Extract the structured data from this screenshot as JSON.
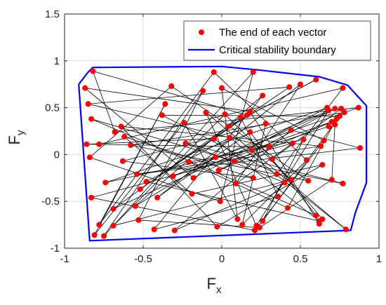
{
  "chart_data": {
    "type": "scatter",
    "xlabel": "F",
    "xlabel_sub": "x",
    "ylabel": "F",
    "ylabel_sub": "y",
    "xlim": [
      -1,
      1
    ],
    "ylim": [
      -1,
      1.5
    ],
    "xticks": [
      -1,
      -0.5,
      0,
      0.5,
      1
    ],
    "yticks": [
      -1,
      -0.5,
      0,
      0.5,
      1,
      1.5
    ],
    "xtick_labels": [
      "-1",
      "-0.5",
      "0",
      "0.5",
      "1"
    ],
    "ytick_labels": [
      "-1",
      "-0.5",
      "0",
      "0.5",
      "1",
      "1.5"
    ],
    "grid": true,
    "legend_position": "top-right",
    "legend": [
      {
        "label": "The end of each vector",
        "marker": "dot",
        "color": "#ff0000"
      },
      {
        "label": "Critical stability boundary",
        "marker": "line",
        "color": "#0000ff"
      }
    ],
    "boundary_color": "#0000ff",
    "point_color": "#ff0000",
    "arrow_color": "#000000",
    "boundary": [
      [
        -0.91,
        0.75
      ],
      [
        -0.85,
        0.88
      ],
      [
        -0.82,
        0.93
      ],
      [
        0.0,
        0.94
      ],
      [
        0.25,
        0.9
      ],
      [
        0.62,
        0.83
      ],
      [
        0.8,
        0.74
      ],
      [
        0.92,
        0.52
      ],
      [
        0.92,
        -0.3
      ],
      [
        0.85,
        -0.62
      ],
      [
        0.82,
        -0.81
      ],
      [
        -0.84,
        -0.92
      ],
      [
        -0.91,
        0.75
      ]
    ],
    "points": [
      [
        -0.87,
        0.71
      ],
      [
        -0.82,
        0.89
      ],
      [
        -0.85,
        0.54
      ],
      [
        -0.83,
        0.38
      ],
      [
        -0.86,
        0.11
      ],
      [
        -0.84,
        -0.03
      ],
      [
        -0.78,
        0.11
      ],
      [
        -0.74,
        -0.3
      ],
      [
        -0.83,
        -0.46
      ],
      [
        -0.78,
        -0.75
      ],
      [
        -0.81,
        -0.86
      ],
      [
        -0.75,
        -0.87
      ],
      [
        -0.69,
        -0.58
      ],
      [
        -0.69,
        -0.76
      ],
      [
        -0.68,
        0.24
      ],
      [
        -0.64,
        0.3
      ],
      [
        -0.62,
        0.19
      ],
      [
        -0.58,
        0.1
      ],
      [
        -0.63,
        -0.07
      ],
      [
        -0.54,
        -0.21
      ],
      [
        -0.52,
        -0.37
      ],
      [
        -0.55,
        -0.55
      ],
      [
        -0.53,
        -0.7
      ],
      [
        -0.48,
        -0.29
      ],
      [
        -0.43,
        -0.8
      ],
      [
        -0.41,
        -0.46
      ],
      [
        -0.38,
        0.42
      ],
      [
        -0.36,
        0.54
      ],
      [
        -0.32,
        0.73
      ],
      [
        -0.24,
        0.34
      ],
      [
        -0.23,
        0.12
      ],
      [
        -0.21,
        -0.08
      ],
      [
        -0.18,
        -0.25
      ],
      [
        -0.19,
        -0.42
      ],
      [
        -0.3,
        -0.81
      ],
      [
        -0.31,
        -0.23
      ],
      [
        -0.12,
        0.68
      ],
      [
        -0.1,
        0.45
      ],
      [
        -0.05,
        0.88
      ],
      [
        -0.05,
        0.17
      ],
      [
        -0.04,
        -0.03
      ],
      [
        -0.02,
        -0.17
      ],
      [
        -0.01,
        -0.5
      ],
      [
        -0.03,
        -0.77
      ],
      [
        0.0,
        0.71
      ],
      [
        0.02,
        0.43
      ],
      [
        0.04,
        0.3
      ],
      [
        0.05,
        0.18
      ],
      [
        0.08,
        -0.07
      ],
      [
        0.09,
        -0.31
      ],
      [
        0.1,
        -0.69
      ],
      [
        0.13,
        -0.75
      ],
      [
        0.12,
        0.4
      ],
      [
        0.16,
        0.42
      ],
      [
        0.18,
        0.46
      ],
      [
        0.18,
        0.24
      ],
      [
        0.19,
        0.05
      ],
      [
        0.2,
        -0.25
      ],
      [
        0.22,
        -0.76
      ],
      [
        0.21,
        -0.81
      ],
      [
        0.24,
        -0.78
      ],
      [
        0.26,
        -0.71
      ],
      [
        0.28,
        0.33
      ],
      [
        0.26,
        0.63
      ],
      [
        0.2,
        0.88
      ],
      [
        0.3,
        0.08
      ],
      [
        0.32,
        -0.05
      ],
      [
        0.35,
        -0.21
      ],
      [
        0.36,
        -0.45
      ],
      [
        0.4,
        -0.3
      ],
      [
        0.43,
        0.72
      ],
      [
        0.44,
        0.26
      ],
      [
        0.45,
        0.12
      ],
      [
        0.44,
        -0.27
      ],
      [
        0.42,
        -0.57
      ],
      [
        0.5,
        0.75
      ],
      [
        0.52,
        0.16
      ],
      [
        0.54,
        -0.06
      ],
      [
        0.55,
        -0.28
      ],
      [
        0.6,
        0.8
      ],
      [
        0.6,
        -0.65
      ],
      [
        0.62,
        -0.71
      ],
      [
        0.62,
        -0.74
      ],
      [
        0.64,
        -0.69
      ],
      [
        0.63,
        0.09
      ],
      [
        0.65,
        0.15
      ],
      [
        0.64,
        -0.11
      ],
      [
        0.67,
        0.5
      ],
      [
        0.68,
        0.47
      ],
      [
        0.7,
        0.35
      ],
      [
        0.7,
        -0.27
      ],
      [
        0.72,
        0.49
      ],
      [
        0.75,
        0.41
      ],
      [
        0.76,
        0.49
      ],
      [
        0.78,
        0.45
      ],
      [
        0.77,
        0.71
      ],
      [
        0.77,
        -0.31
      ],
      [
        0.79,
        -0.8
      ],
      [
        0.87,
        0.5
      ],
      [
        0.88,
        0.07
      ],
      [
        0.68,
        0.3
      ],
      [
        0.72,
        0.32
      ],
      [
        0.73,
        0.38
      ]
    ],
    "arrows": [
      [
        -0.82,
        0.89,
        -0.68,
        0.24
      ],
      [
        -0.87,
        0.71,
        0.18,
        0.46
      ],
      [
        -0.85,
        0.54,
        0.43,
        0.72
      ],
      [
        -0.83,
        0.38,
        0.6,
        -0.65
      ],
      [
        -0.86,
        0.11,
        0.3,
        0.08
      ],
      [
        -0.84,
        -0.03,
        -0.32,
        0.73
      ],
      [
        -0.78,
        0.11,
        0.77,
        0.71
      ],
      [
        -0.74,
        -0.3,
        0.67,
        0.5
      ],
      [
        -0.83,
        -0.46,
        0.21,
        -0.81
      ],
      [
        -0.78,
        -0.75,
        -0.05,
        0.88
      ],
      [
        -0.81,
        -0.86,
        -0.36,
        0.54
      ],
      [
        -0.75,
        -0.87,
        0.2,
        0.88
      ],
      [
        -0.69,
        -0.58,
        0.72,
        0.49
      ],
      [
        -0.69,
        -0.76,
        0.44,
        -0.27
      ],
      [
        -0.68,
        0.24,
        0.87,
        0.5
      ],
      [
        -0.64,
        0.3,
        0.63,
        0.09
      ],
      [
        -0.62,
        0.19,
        -0.19,
        -0.42
      ],
      [
        -0.58,
        0.1,
        0.78,
        0.45
      ],
      [
        -0.63,
        -0.07,
        0.2,
        -0.25
      ],
      [
        -0.54,
        -0.21,
        0.88,
        0.07
      ],
      [
        -0.52,
        -0.37,
        0.16,
        0.42
      ],
      [
        -0.55,
        -0.55,
        0.26,
        0.63
      ],
      [
        -0.53,
        -0.7,
        -0.12,
        0.68
      ],
      [
        -0.48,
        -0.29,
        0.62,
        -0.71
      ],
      [
        -0.43,
        -0.8,
        0.36,
        -0.45
      ],
      [
        -0.41,
        -0.46,
        0.5,
        0.75
      ],
      [
        -0.38,
        0.42,
        0.75,
        0.41
      ],
      [
        -0.36,
        0.54,
        -0.78,
        -0.75
      ],
      [
        -0.32,
        0.73,
        0.55,
        -0.28
      ],
      [
        -0.24,
        0.34,
        -0.81,
        -0.86
      ],
      [
        -0.23,
        0.12,
        0.77,
        -0.31
      ],
      [
        -0.21,
        -0.08,
        0.42,
        -0.57
      ],
      [
        -0.18,
        -0.25,
        -0.87,
        0.71
      ],
      [
        -0.19,
        -0.42,
        0.64,
        -0.11
      ],
      [
        -0.3,
        -0.81,
        0.4,
        -0.3
      ],
      [
        -0.31,
        -0.23,
        0.68,
        0.47
      ],
      [
        -0.12,
        0.68,
        -0.75,
        -0.87
      ],
      [
        -0.1,
        0.45,
        0.79,
        -0.8
      ],
      [
        -0.05,
        0.88,
        0.54,
        -0.06
      ],
      [
        -0.05,
        0.17,
        -0.86,
        0.11
      ],
      [
        -0.04,
        -0.03,
        -0.55,
        -0.55
      ],
      [
        -0.02,
        -0.17,
        0.7,
        0.35
      ],
      [
        -0.01,
        -0.5,
        -0.84,
        -0.03
      ],
      [
        -0.03,
        -0.77,
        -0.64,
        0.3
      ],
      [
        0.0,
        0.71,
        0.1,
        -0.69
      ],
      [
        0.02,
        0.43,
        -0.69,
        -0.76
      ],
      [
        0.04,
        0.3,
        0.6,
        0.8
      ],
      [
        0.05,
        0.18,
        -0.48,
        -0.29
      ],
      [
        0.08,
        -0.07,
        -0.83,
        0.38
      ],
      [
        0.09,
        -0.31,
        0.45,
        0.12
      ],
      [
        0.1,
        -0.69,
        -0.24,
        0.34
      ],
      [
        0.13,
        -0.75,
        0.28,
        0.33
      ],
      [
        0.12,
        0.4,
        -0.69,
        -0.58
      ],
      [
        0.16,
        0.42,
        -0.82,
        0.89
      ],
      [
        0.18,
        0.46,
        0.62,
        -0.74
      ],
      [
        0.18,
        0.24,
        -0.41,
        -0.46
      ],
      [
        0.19,
        0.05,
        -0.74,
        -0.3
      ],
      [
        0.2,
        -0.25,
        -0.62,
        0.19
      ],
      [
        0.22,
        -0.76,
        -0.1,
        0.45
      ],
      [
        0.21,
        -0.81,
        0.65,
        0.15
      ],
      [
        0.24,
        -0.78,
        -0.53,
        -0.7
      ],
      [
        0.26,
        -0.71,
        0.52,
        0.16
      ],
      [
        0.28,
        0.33,
        -0.63,
        -0.07
      ],
      [
        0.26,
        0.63,
        -0.43,
        -0.8
      ],
      [
        0.2,
        0.88,
        -0.01,
        -0.5
      ],
      [
        0.3,
        0.08,
        -0.85,
        0.54
      ],
      [
        0.32,
        -0.05,
        0.76,
        0.49
      ],
      [
        0.35,
        -0.21,
        -0.38,
        0.42
      ],
      [
        0.36,
        -0.45,
        0.12,
        0.4
      ],
      [
        0.4,
        -0.3,
        -0.23,
        0.12
      ],
      [
        0.43,
        0.72,
        -0.52,
        -0.37
      ],
      [
        0.44,
        0.26,
        -0.3,
        -0.81
      ],
      [
        0.45,
        0.12,
        -0.83,
        -0.46
      ],
      [
        0.44,
        -0.27,
        0.02,
        0.43
      ],
      [
        0.42,
        -0.57,
        0.73,
        0.38
      ],
      [
        0.5,
        0.75,
        0.09,
        -0.31
      ],
      [
        0.52,
        0.16,
        -0.21,
        -0.08
      ],
      [
        0.54,
        -0.06,
        0.13,
        -0.75
      ],
      [
        0.55,
        -0.28,
        -0.58,
        0.1
      ],
      [
        0.6,
        0.8,
        0.04,
        0.3
      ],
      [
        0.6,
        -0.65,
        0.18,
        0.24
      ],
      [
        0.62,
        -0.71,
        -0.05,
        0.17
      ],
      [
        0.64,
        -0.69,
        0.32,
        -0.05
      ],
      [
        0.63,
        0.09,
        -0.54,
        -0.21
      ],
      [
        0.65,
        0.15,
        0.0,
        0.71
      ],
      [
        0.64,
        -0.11,
        -0.03,
        -0.77
      ],
      [
        0.67,
        0.5,
        -0.18,
        -0.25
      ],
      [
        0.68,
        0.47,
        0.22,
        -0.76
      ],
      [
        0.7,
        0.35,
        0.19,
        0.05
      ],
      [
        0.7,
        -0.27,
        0.24,
        -0.78
      ],
      [
        0.72,
        0.49,
        -0.02,
        -0.17
      ],
      [
        0.75,
        0.41,
        0.26,
        -0.71
      ],
      [
        0.77,
        0.71,
        0.35,
        -0.21
      ],
      [
        0.77,
        -0.31,
        0.08,
        -0.07
      ],
      [
        0.79,
        -0.8,
        0.05,
        0.18
      ],
      [
        0.87,
        0.5,
        -0.04,
        -0.03
      ],
      [
        0.88,
        0.07,
        0.44,
        0.26
      ],
      [
        0.68,
        0.3,
        -0.31,
        -0.23
      ],
      [
        0.72,
        0.32,
        0.7,
        -0.27
      ]
    ]
  }
}
